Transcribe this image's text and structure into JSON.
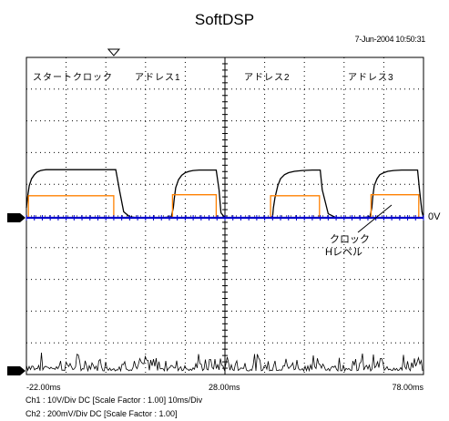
{
  "header": {
    "title": "SoftDSP",
    "timestamp": "7-Jun-2004 10:50:31"
  },
  "axis": {
    "x_min_label": "-22.00ms",
    "x_mid_label": "28.00ms",
    "x_max_label": "78.00ms"
  },
  "channels": {
    "ch1": "Ch1 : 10V/Div  DC  [Scale Factor : 1.00]    10ms/Div",
    "ch2": "Ch2 : 200mV/Div  DC  [Scale Factor : 1.00]"
  },
  "annotations": {
    "start_clock": "スタートクロック",
    "address1": "アドレス1",
    "address2": "アドレス2",
    "address3": "アドレス3",
    "zero_level": "0V",
    "clock_line1": "クロック",
    "clock_line2": "Hレベル"
  },
  "chart_data": {
    "type": "line",
    "x_unit": "ms",
    "x_range": [
      -22,
      78
    ],
    "divisions": [
      10,
      10
    ],
    "grid": true,
    "series": [
      {
        "name": "",
        "color": "#000000",
        "x": [
          -22,
          -21.8,
          -21.3,
          -20.7,
          -20,
          -19.3,
          -18.5,
          -17.8,
          -17,
          -16.5,
          -16,
          0.5,
          1.5,
          2.5,
          4,
          6,
          12,
          14.5,
          15,
          15.2,
          15.6,
          16.3,
          17.1,
          18,
          19,
          20,
          21.5,
          24,
          25.8,
          26.5,
          27,
          28,
          30,
          39,
          40,
          40.2,
          40.6,
          41.3,
          42,
          43,
          44,
          45.5,
          47.5,
          50,
          52,
          52.5,
          54,
          56,
          62,
          64.5,
          65,
          65.2,
          65.6,
          66.3,
          67,
          68,
          69,
          70.5,
          72.5,
          75,
          76.5,
          77,
          77.6,
          78
        ],
        "y": [
          0.5,
          0.9,
          1.6,
          1.95,
          2.15,
          2.28,
          2.35,
          2.38,
          2.4,
          2.4,
          2.4,
          2.4,
          1.3,
          0.3,
          0.05,
          0,
          0,
          0.05,
          0.5,
          0.9,
          1.5,
          1.9,
          2.12,
          2.25,
          2.32,
          2.36,
          2.38,
          2.38,
          2.38,
          1.4,
          0.25,
          0,
          0,
          0,
          0.05,
          0.5,
          1.0,
          1.6,
          1.95,
          2.15,
          2.25,
          2.32,
          2.36,
          2.38,
          2.38,
          1.4,
          0.2,
          0,
          0,
          0.05,
          0.5,
          1.0,
          1.6,
          1.95,
          2.15,
          2.25,
          2.32,
          2.36,
          2.38,
          2.38,
          2.38,
          1.4,
          0.3,
          0
        ]
      },
      {
        "name": "",
        "color": "#FF8000",
        "x": [
          -22,
          -21.5,
          -21.5,
          0,
          0,
          14.8,
          14.8,
          25.8,
          25.8,
          39.5,
          39.5,
          51.8,
          51.8,
          64.8,
          64.8,
          76.8,
          76.8,
          78
        ],
        "y": [
          0,
          0,
          1.1,
          1.1,
          0,
          0,
          1.15,
          1.15,
          0,
          0,
          1.1,
          1.1,
          0,
          0,
          1.15,
          1.15,
          0,
          0
        ]
      },
      {
        "name": "",
        "color": "#0000CC",
        "x": [
          -22,
          78
        ],
        "y": [
          0,
          0
        ]
      }
    ],
    "markers": [
      {
        "type": "ground",
        "level_div": 0
      },
      {
        "type": "ground",
        "level_div": -8.3
      },
      {
        "type": "trigger",
        "x": 0
      }
    ]
  }
}
